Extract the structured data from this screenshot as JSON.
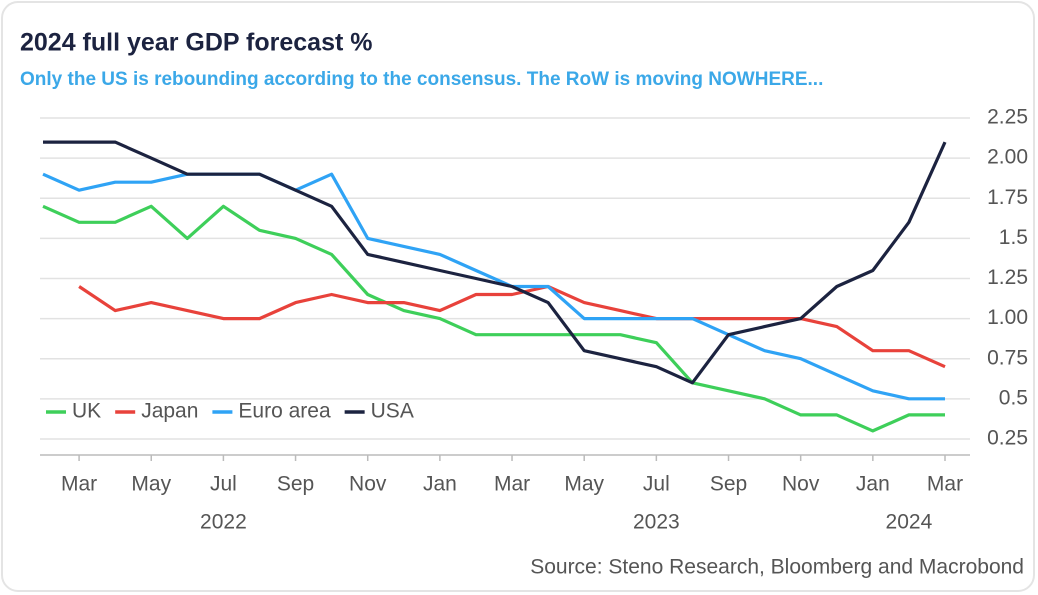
{
  "chart_data": {
    "type": "line",
    "title": "2024 full year GDP forecast %",
    "subtitle": "Only the US is rebounding according to the consensus. The RoW is moving NOWHERE...",
    "source": "Source: Steno Research, Bloomberg and Macrobond",
    "x": [
      "2022-02",
      "2022-03",
      "2022-04",
      "2022-05",
      "2022-06",
      "2022-07",
      "2022-08",
      "2022-09",
      "2022-10",
      "2022-11",
      "2022-12",
      "2023-01",
      "2023-02",
      "2023-03",
      "2023-04",
      "2023-05",
      "2023-06",
      "2023-07",
      "2023-08",
      "2023-09",
      "2023-10",
      "2023-11",
      "2023-12",
      "2024-01",
      "2024-02",
      "2024-03"
    ],
    "series": [
      {
        "name": "UK",
        "color": "#3ecf5a",
        "values": [
          1.7,
          1.6,
          1.6,
          1.7,
          1.5,
          1.7,
          1.55,
          1.5,
          1.4,
          1.15,
          1.05,
          1.0,
          0.9,
          0.9,
          0.9,
          0.9,
          0.9,
          0.85,
          0.6,
          0.55,
          0.5,
          0.4,
          0.4,
          0.3,
          0.4,
          0.4
        ]
      },
      {
        "name": "Japan",
        "color": "#e8423b",
        "values": [
          null,
          1.2,
          1.05,
          1.1,
          1.05,
          1.0,
          1.0,
          1.1,
          1.15,
          1.1,
          1.1,
          1.05,
          1.15,
          1.15,
          1.2,
          1.1,
          1.05,
          1.0,
          1.0,
          1.0,
          1.0,
          1.0,
          0.95,
          0.8,
          0.8,
          0.7
        ]
      },
      {
        "name": "Euro area",
        "color": "#2fa3f5",
        "values": [
          1.9,
          1.8,
          1.85,
          1.85,
          1.9,
          1.9,
          1.9,
          1.8,
          1.9,
          1.5,
          1.45,
          1.4,
          1.3,
          1.2,
          1.2,
          1.0,
          1.0,
          1.0,
          1.0,
          0.9,
          0.8,
          0.75,
          0.65,
          0.55,
          0.5,
          0.5
        ]
      },
      {
        "name": "USA",
        "color": "#1c2340",
        "values": [
          2.1,
          2.1,
          2.1,
          2.0,
          1.9,
          1.9,
          1.9,
          1.8,
          1.7,
          1.4,
          1.35,
          1.3,
          1.25,
          1.2,
          1.1,
          0.8,
          0.75,
          0.7,
          0.6,
          0.9,
          0.95,
          1.0,
          1.2,
          1.3,
          1.6,
          2.1
        ]
      }
    ],
    "ylim": [
      0.15,
      2.3
    ],
    "yticks": [
      0.25,
      0.5,
      0.75,
      {
        "value": 1,
        "label": "1.00"
      },
      1.25,
      1.5,
      1.75,
      {
        "value": 2,
        "label": "2.00"
      },
      2.25
    ],
    "xticks": [
      {
        "value": "2022-03",
        "label": "Mar"
      },
      {
        "value": "2022-05",
        "label": "May"
      },
      {
        "value": "2022-07",
        "label": "Jul"
      },
      {
        "value": "2022-09",
        "label": "Sep"
      },
      {
        "value": "2022-11",
        "label": "Nov"
      },
      {
        "value": "2023-01",
        "label": "Jan"
      },
      {
        "value": "2023-03",
        "label": "Mar"
      },
      {
        "value": "2023-05",
        "label": "May"
      },
      {
        "value": "2023-07",
        "label": "Jul"
      },
      {
        "value": "2023-09",
        "label": "Sep"
      },
      {
        "value": "2023-11",
        "label": "Nov"
      },
      {
        "value": "2024-01",
        "label": "Jan"
      },
      {
        "value": "2024-03",
        "label": "Mar"
      }
    ],
    "year_labels": [
      {
        "value": "2022-07",
        "label": "2022"
      },
      {
        "value": "2023-07",
        "label": "2023"
      },
      {
        "value": "2024-02",
        "label": "2024"
      }
    ],
    "grid": true,
    "legend": "lower left"
  }
}
